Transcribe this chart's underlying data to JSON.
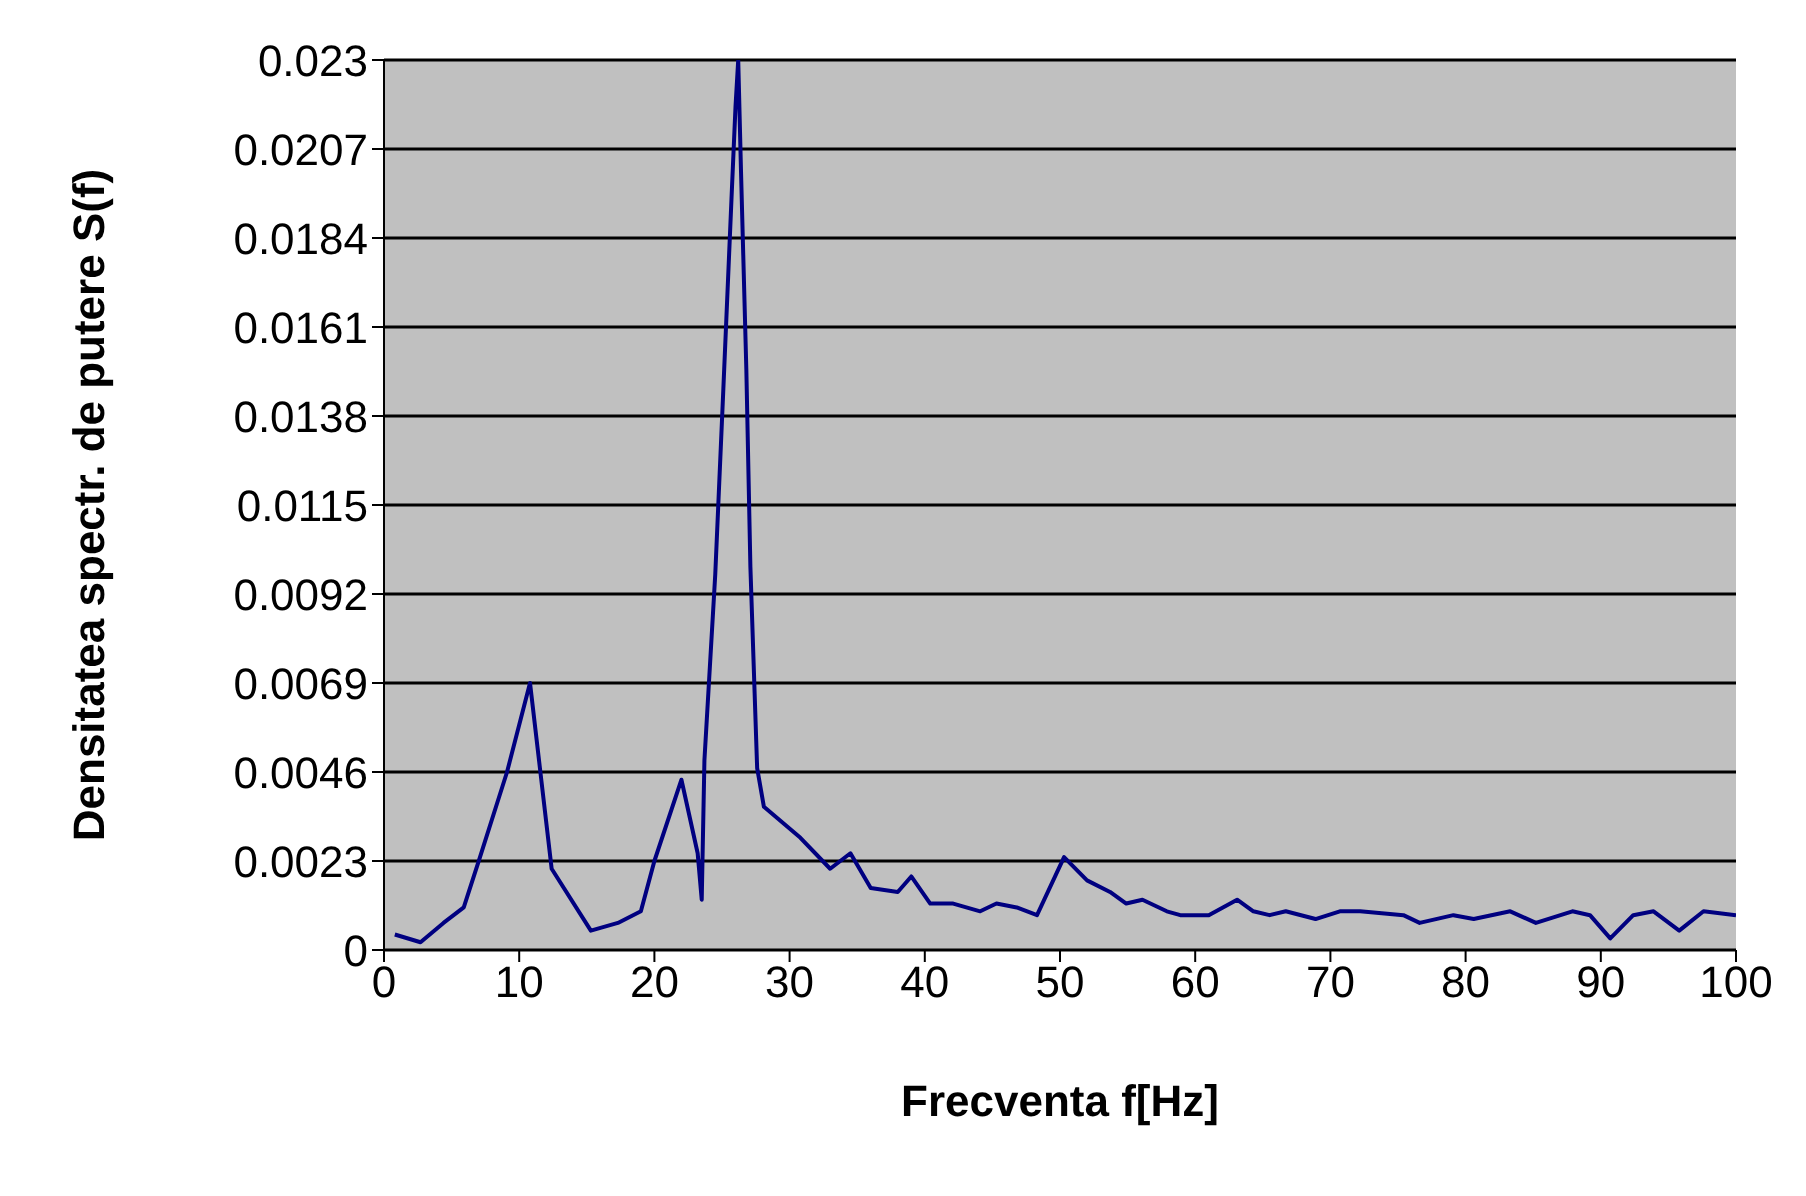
{
  "chart_data": {
    "type": "line",
    "xlabel": "Frecventa f[Hz]",
    "ylabel": "Densitatea spectr. de putere S(f)",
    "x": [
      0.8,
      2.7,
      4.4,
      5.9,
      7.1,
      9.1,
      10.8,
      11.6,
      12.4,
      15.3,
      17.3,
      19.0,
      20.0,
      22.0,
      23.2,
      23.5,
      23.7,
      24.5,
      25.1,
      25.7,
      26.0,
      26.2,
      26.4,
      26.8,
      27.1,
      27.6,
      28.1,
      30.8,
      33.0,
      34.5,
      36.0,
      38.0,
      39.0,
      40.4,
      42.1,
      44.1,
      45.3,
      46.8,
      48.3,
      50.3,
      52.0,
      53.7,
      54.9,
      56.1,
      57.9,
      58.9,
      61.0,
      63.1,
      64.3,
      65.5,
      66.7,
      68.9,
      70.7,
      72.2,
      75.4,
      76.6,
      79.1,
      80.6,
      83.3,
      85.2,
      87.9,
      89.2,
      90.7,
      92.4,
      93.9,
      95.8,
      97.6,
      100
    ],
    "series": [
      {
        "color": "#000080",
        "values": [
          0.0004,
          0.0002,
          0.0007,
          0.0011,
          0.0024,
          0.0046,
          0.0069,
          0.0045,
          0.0021,
          0.0005,
          0.0007,
          0.001,
          0.0023,
          0.0044,
          0.0025,
          0.0013,
          0.0049,
          0.0097,
          0.0145,
          0.0194,
          0.0218,
          0.023,
          0.0202,
          0.015,
          0.0099,
          0.0047,
          0.0037,
          0.0029,
          0.0021,
          0.0025,
          0.0016,
          0.0015,
          0.0019,
          0.0012,
          0.0012,
          0.001,
          0.0012,
          0.0011,
          0.0009,
          0.0024,
          0.0018,
          0.0015,
          0.0012,
          0.0013,
          0.001,
          0.0009,
          0.0009,
          0.0013,
          0.001,
          0.0009,
          0.001,
          0.0008,
          0.001,
          0.001,
          0.0009,
          0.0007,
          0.0009,
          0.0008,
          0.001,
          0.0007,
          0.001,
          0.0009,
          0.0003,
          0.0009,
          0.001,
          0.0005,
          0.001,
          0.0009
        ]
      }
    ],
    "xlim": [
      0,
      100
    ],
    "xticks": [
      0,
      10,
      20,
      30,
      40,
      50,
      60,
      70,
      80,
      90,
      100
    ],
    "ylim": [
      0,
      0.023
    ],
    "yticks": [
      0,
      0.0023,
      0.0046,
      0.0069,
      0.0092,
      0.0115,
      0.0138,
      0.0161,
      0.0184,
      0.0207,
      0.023
    ],
    "grid": "y",
    "marker": "none",
    "line_style": "solid"
  }
}
